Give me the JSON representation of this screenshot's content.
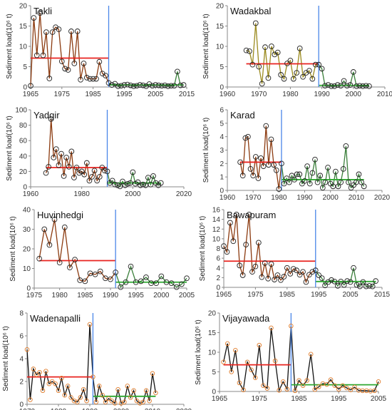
{
  "y_label": "Sediment load(10⁶ t)",
  "chart_data": [
    {
      "type": "line",
      "title": "Takli",
      "xlim": [
        1965,
        2015
      ],
      "xticks": [
        1965,
        1975,
        1985,
        1995,
        2005,
        2015
      ],
      "ylim": [
        0,
        20
      ],
      "yticks": [
        0,
        5,
        10,
        15,
        20
      ],
      "change_year": 1990,
      "mean_before": 7.1,
      "mean_after": 0.5,
      "marker": "open-black",
      "line_before": "#8B3A0F",
      "line_after": "#3a7f3a",
      "x": [
        1965,
        1966,
        1967,
        1968,
        1969,
        1970,
        1971,
        1972,
        1973,
        1974,
        1975,
        1976,
        1977,
        1978,
        1979,
        1980,
        1981,
        1982,
        1983,
        1984,
        1985,
        1986,
        1987,
        1988,
        1989,
        1990,
        1991,
        1992,
        1993,
        1994,
        1995,
        1996,
        1997,
        1998,
        1999,
        2000,
        2001,
        2002,
        2003,
        2004,
        2005,
        2006,
        2007,
        2008,
        2009,
        2010,
        2011,
        2012,
        2013,
        2014
      ],
      "values": [
        0.3,
        17,
        7.8,
        18.2,
        7.8,
        13.5,
        2.1,
        13.5,
        14.7,
        14.2,
        6.3,
        4.5,
        4.2,
        13.7,
        5.8,
        13.7,
        1.8,
        5.8,
        2.3,
        2,
        2,
        2,
        6.2,
        3.3,
        2.8,
        1,
        0.5,
        0.8,
        0.2,
        0.3,
        0.5,
        0.6,
        0.4,
        0.2,
        0.3,
        0.5,
        0.4,
        0.2,
        0.7,
        0.3,
        0.5,
        0.4,
        0.3,
        0.4,
        0.2,
        0.3,
        0.3,
        3.8,
        0.4,
        0.5
      ]
    },
    {
      "type": "line",
      "title": "Wadakbal",
      "xlim": [
        1960,
        2010
      ],
      "xticks": [
        1960,
        1970,
        1980,
        1990,
        2000,
        2010
      ],
      "ylim": [
        0,
        20
      ],
      "yticks": [
        0,
        5,
        10,
        15,
        20
      ],
      "change_year": 1989,
      "mean_before": 5.7,
      "mean_after": 0.4,
      "marker": "open-black",
      "line_before": "#9a8a1e",
      "line_after": "#3a7f3a",
      "x": [
        1966,
        1967,
        1968,
        1969,
        1970,
        1971,
        1972,
        1973,
        1974,
        1975,
        1976,
        1977,
        1978,
        1979,
        1980,
        1981,
        1982,
        1983,
        1984,
        1985,
        1986,
        1987,
        1988,
        1989,
        1990,
        1991,
        1992,
        1993,
        1994,
        1995,
        1996,
        1997,
        1998,
        1999,
        2000,
        2001,
        2002,
        2003,
        2004,
        2005
      ],
      "values": [
        9,
        8.8,
        5.5,
        15.7,
        5,
        0.8,
        9.8,
        2.2,
        10,
        8,
        8.5,
        3,
        2,
        5.8,
        6.5,
        2,
        3.5,
        9.5,
        2.5,
        3.5,
        4,
        2,
        5.5,
        5.5,
        4.5,
        0.3,
        0.5,
        0.2,
        0.2,
        0.5,
        0.3,
        1.5,
        0.3,
        0.5,
        3.7,
        0.2,
        0.3,
        0.2,
        0.3,
        0.2
      ]
    },
    {
      "type": "line",
      "title": "Yadgir",
      "xlim": [
        1960,
        2020
      ],
      "xticks": [
        1960,
        1980,
        2000,
        2020
      ],
      "ylim": [
        0,
        100
      ],
      "yticks": [
        0,
        20,
        40,
        60,
        80,
        100
      ],
      "change_year": 1990,
      "mean_before": 25,
      "mean_after": 5,
      "marker": "open-black",
      "line_before": "#8B3A0F",
      "line_after": "#3a7f3a",
      "x": [
        1966,
        1967,
        1968,
        1969,
        1970,
        1971,
        1972,
        1973,
        1974,
        1975,
        1976,
        1977,
        1978,
        1979,
        1980,
        1981,
        1982,
        1983,
        1984,
        1985,
        1986,
        1987,
        1988,
        1989,
        1990,
        1991,
        1992,
        1993,
        1994,
        1995,
        1996,
        1997,
        1998,
        1999,
        2000,
        2001,
        2002,
        2003,
        2004,
        2005,
        2006,
        2007,
        2008,
        2009,
        2010,
        2011
      ],
      "values": [
        18,
        26,
        88,
        38,
        49,
        28,
        43,
        14,
        38,
        26,
        46,
        12,
        25,
        18,
        20,
        16,
        31,
        8,
        13,
        21,
        8,
        13,
        25,
        21,
        20,
        5,
        8,
        3,
        2,
        0.5,
        7,
        2,
        4,
        5,
        19,
        4,
        6,
        2,
        3,
        2,
        12,
        3,
        14,
        5,
        2,
        5
      ]
    },
    {
      "type": "line",
      "title": "Karad",
      "xlim": [
        1960,
        2020
      ],
      "xticks": [
        1960,
        1970,
        1980,
        1990,
        2000,
        2010,
        2020
      ],
      "ylim": [
        0,
        6
      ],
      "yticks": [
        0,
        1,
        2,
        3,
        4,
        5,
        6
      ],
      "change_year": 1981,
      "mean_before": 2.1,
      "mean_after": 0.8,
      "marker": "open-black",
      "line_before": "#8B3A0F",
      "line_after": "#3a7f3a",
      "x": [
        1965,
        1966,
        1967,
        1968,
        1969,
        1970,
        1971,
        1972,
        1973,
        1974,
        1975,
        1976,
        1977,
        1978,
        1979,
        1980,
        1981,
        1982,
        1983,
        1984,
        1985,
        1986,
        1987,
        1988,
        1989,
        1990,
        1991,
        1992,
        1993,
        1994,
        1995,
        1996,
        1997,
        1998,
        1999,
        2000,
        2001,
        2002,
        2003,
        2004,
        2005,
        2006,
        2007,
        2008,
        2009,
        2010,
        2011,
        2012,
        2013
      ],
      "values": [
        2.1,
        1.1,
        3.9,
        4,
        1.6,
        1.1,
        2.5,
        0.9,
        2.4,
        1.8,
        4.8,
        1.9,
        3.8,
        1.9,
        1.5,
        0.1,
        2,
        0.5,
        0.9,
        0.6,
        1.1,
        0.8,
        1.2,
        1.2,
        0.5,
        0.7,
        1.8,
        0.5,
        1.3,
        2.3,
        0.6,
        1.1,
        0.2,
        0.6,
        1.7,
        0.5,
        0.3,
        1.4,
        0.3,
        0.6,
        1.6,
        3.3,
        0.6,
        0.2,
        0.4,
        0.6,
        1.2,
        0.6,
        0.3
      ]
    },
    {
      "type": "line",
      "title": "Huvinhedgi",
      "xlim": [
        1975,
        2005
      ],
      "xticks": [
        1975,
        1980,
        1985,
        1990,
        1995,
        2000,
        2005
      ],
      "ylim": [
        0,
        40
      ],
      "yticks": [
        0,
        10,
        20,
        30,
        40
      ],
      "change_year": 1991,
      "mean_before": 14,
      "mean_after": 3,
      "marker": "open-black",
      "line_before": "#8B3A0F",
      "line_after": "#3a7f3a",
      "x": [
        1976,
        1977,
        1978,
        1979,
        1980,
        1981,
        1982,
        1983,
        1984,
        1985,
        1986,
        1987,
        1988,
        1989,
        1990,
        1991,
        1992,
        1993,
        1994,
        1995,
        1996,
        1997,
        1998,
        1999,
        2000,
        2001,
        2002,
        2003,
        2004,
        2005
      ],
      "values": [
        15,
        30,
        22,
        35,
        13,
        31,
        10.5,
        14.5,
        4,
        3.5,
        7.5,
        7,
        8.5,
        5,
        4.5,
        8,
        0.5,
        3,
        11,
        3,
        3.5,
        5.5,
        2.5,
        2.5,
        6,
        3,
        2.5,
        0.5,
        2,
        5
      ]
    },
    {
      "type": "line",
      "title": "Bawapuram",
      "xlim": [
        1965,
        2015
      ],
      "xticks": [
        1965,
        1975,
        1985,
        1995,
        2005,
        2015
      ],
      "ylim": [
        0,
        16
      ],
      "yticks": [
        0,
        2,
        4,
        6,
        8,
        10,
        12,
        14,
        16
      ],
      "change_year": 1994,
      "mean_before": 5.4,
      "mean_after": 1.2,
      "marker": "open-black",
      "line_before": "#8B3A0F",
      "line_after": "#3a7f3a",
      "x": [
        1965,
        1966,
        1967,
        1968,
        1969,
        1970,
        1971,
        1972,
        1973,
        1974,
        1975,
        1976,
        1977,
        1978,
        1979,
        1980,
        1981,
        1982,
        1983,
        1984,
        1985,
        1986,
        1987,
        1988,
        1989,
        1990,
        1991,
        1992,
        1993,
        1994,
        1995,
        1996,
        1997,
        1998,
        1999,
        2000,
        2001,
        2002,
        2003,
        2004,
        2005,
        2006,
        2007,
        2008,
        2009,
        2010,
        2011,
        2012,
        2013
      ],
      "values": [
        8.5,
        7.3,
        13.3,
        9.5,
        15,
        4.5,
        2.5,
        8.8,
        15,
        3.2,
        4.3,
        9.2,
        2.1,
        5,
        1.8,
        4.8,
        1.6,
        2.5,
        1.5,
        2.2,
        4,
        2.8,
        3.8,
        3.5,
        2.6,
        3.2,
        1.1,
        2.6,
        3.2,
        3.5,
        2.5,
        1.9,
        0.4,
        1.1,
        1.5,
        1.2,
        0.3,
        1.2,
        0.5,
        1.3,
        1.1,
        4,
        0.5,
        0.2,
        1.1,
        0.2,
        0.3,
        0.2,
        1.3
      ]
    },
    {
      "type": "line",
      "title": "Wadenapalli",
      "xlim": [
        1970,
        2020
      ],
      "xticks": [
        1970,
        1980,
        1990,
        2000,
        2010,
        2020
      ],
      "ylim": [
        0,
        8
      ],
      "yticks": [
        0,
        2,
        4,
        6,
        8
      ],
      "change_year": 1991,
      "mean_before": 2.4,
      "mean_after": 0.7,
      "marker": "open-orange",
      "line_before": "#111111",
      "line_after": "#111111",
      "x": [
        1970,
        1971,
        1972,
        1973,
        1974,
        1975,
        1976,
        1977,
        1978,
        1979,
        1980,
        1981,
        1982,
        1983,
        1984,
        1985,
        1986,
        1987,
        1988,
        1989,
        1990,
        1991,
        1992,
        1993,
        1994,
        1995,
        1996,
        1997,
        1998,
        1999,
        2000,
        2001,
        2002,
        2003,
        2004,
        2005,
        2006,
        2007,
        2008,
        2009,
        2010,
        2011
      ],
      "values": [
        4.8,
        0.4,
        3.1,
        2.6,
        2.8,
        1.2,
        2.9,
        1.8,
        2,
        1.8,
        1.2,
        2.3,
        0.8,
        1.6,
        0.6,
        0.3,
        0.2,
        0.6,
        1.3,
        0.3,
        7,
        2.4,
        0.2,
        1.6,
        0.8,
        0.2,
        0.5,
        0.3,
        0.1,
        1.3,
        0.1,
        0.2,
        1.6,
        0.6,
        1.2,
        0.3,
        0.1,
        0.2,
        1.2,
        0.3,
        2.7,
        1
      ]
    },
    {
      "type": "line",
      "title": "Vijayawada",
      "xlim": [
        1965,
        2005
      ],
      "xticks": [
        1965,
        1975,
        1985,
        1995,
        2005
      ],
      "ylim": [
        0,
        20
      ],
      "yticks": [
        0,
        5,
        10,
        15,
        20
      ],
      "change_year": 1983,
      "mean_before": 6.8,
      "mean_after": 1.7,
      "marker": "open-orange",
      "line_before": "#111111",
      "line_after": "#111111",
      "x": [
        1966,
        1967,
        1968,
        1969,
        1970,
        1971,
        1972,
        1973,
        1974,
        1975,
        1976,
        1977,
        1978,
        1979,
        1980,
        1981,
        1982,
        1983,
        1984,
        1985,
        1986,
        1987,
        1988,
        1989,
        1990,
        1991,
        1992,
        1993,
        1994,
        1995,
        1996,
        1997,
        1998,
        1999,
        2000,
        2001,
        2002,
        2003,
        2004,
        2005
      ],
      "values": [
        7.5,
        12.2,
        5,
        10.5,
        2.2,
        0.4,
        7.5,
        5.5,
        3.5,
        11.8,
        1.5,
        0.8,
        16.2,
        7.8,
        0.3,
        2.5,
        0.6,
        16.7,
        0.2,
        2.8,
        1.5,
        2.8,
        9.5,
        0.5,
        1.2,
        2,
        1.8,
        3,
        1.5,
        0.6,
        1.5,
        0.9,
        0.4,
        1.1,
        0.3,
        0.2,
        0.2,
        0.1,
        0.2,
        2.5
      ]
    }
  ]
}
